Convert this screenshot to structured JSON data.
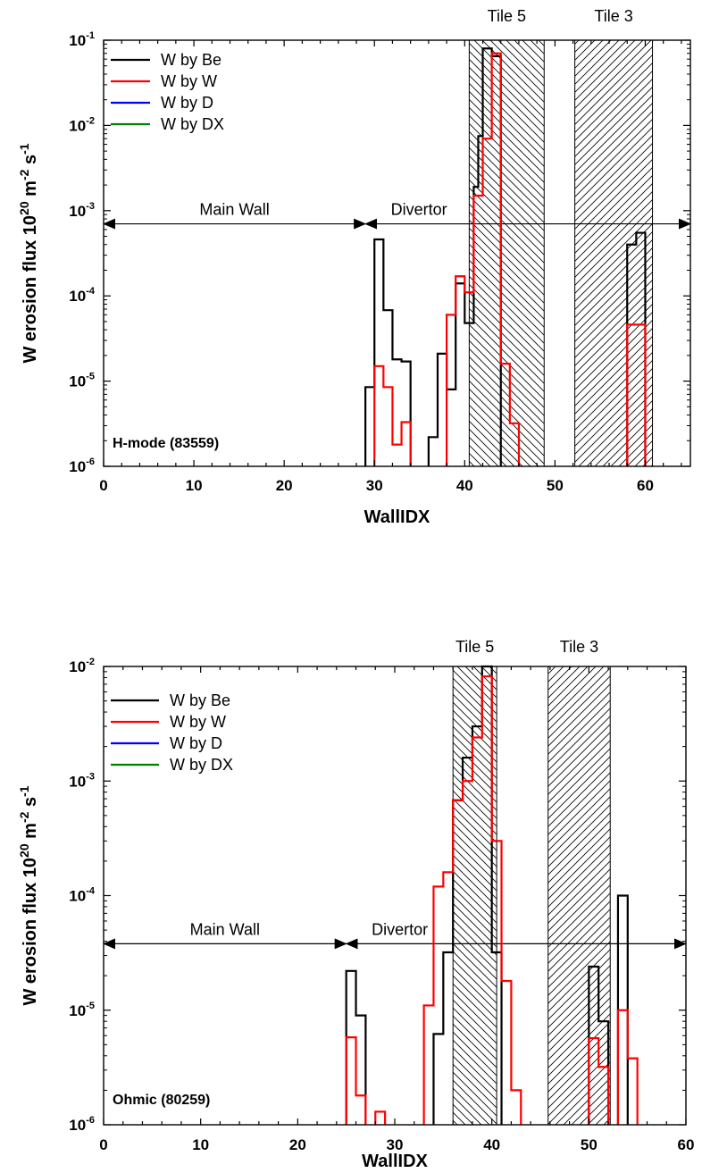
{
  "chart_data": [
    {
      "type": "line",
      "title": "",
      "xlabel": "WallIDX",
      "ylabel_main": "W erosion flux 10",
      "ylabel_sup1": "20",
      "ylabel_mid": " m",
      "ylabel_sup2": "-2",
      "ylabel_mid2": " s",
      "ylabel_sup3": "-1",
      "xlim": [
        0,
        65
      ],
      "ylim": [
        1e-06,
        0.1
      ],
      "yscale": "log",
      "xticks": [
        0,
        10,
        20,
        30,
        40,
        50,
        60
      ],
      "yticks": [
        -6,
        -5,
        -4,
        -3,
        -2,
        -1
      ],
      "legend_position": "top-left",
      "case_label": "H-mode (83559)",
      "regions": [
        {
          "label": "Tile 5",
          "x0": 40.5,
          "x1": 48.8,
          "hatch": "back"
        },
        {
          "label": "Tile 3",
          "x0": 52.2,
          "x1": 60.8,
          "hatch": "forward"
        }
      ],
      "arrows": [
        {
          "label": "Main Wall",
          "x0": 0,
          "x1": 29,
          "y": 0.0007
        },
        {
          "label": "Divertor",
          "x0": 29,
          "x1": 65,
          "y": 0.0007
        }
      ],
      "series": [
        {
          "name": "W by Be",
          "color": "#000000",
          "bins": [
            [
              29,
              30,
              8.5e-06
            ],
            [
              30,
              31,
              0.00046
            ],
            [
              31,
              32,
              6.8e-05
            ],
            [
              32,
              33,
              1.8e-05
            ],
            [
              33,
              34,
              1.7e-05
            ],
            [
              36,
              37,
              2.2e-06
            ],
            [
              37,
              38,
              2.1e-05
            ],
            [
              38,
              39,
              8e-06
            ],
            [
              39,
              40,
              0.00014
            ],
            [
              40,
              41,
              4.8e-05
            ],
            [
              41,
              41.5,
              0.0019
            ],
            [
              41.5,
              42,
              0.0075
            ],
            [
              42,
              43,
              0.08
            ],
            [
              43,
              44,
              0.065
            ],
            [
              58,
              59,
              0.0004
            ],
            [
              59,
              60,
              0.00055
            ]
          ]
        },
        {
          "name": "W by W",
          "color": "#ff0000",
          "bins": [
            [
              30,
              31,
              1.5e-05
            ],
            [
              31,
              32,
              8.5e-06
            ],
            [
              32,
              33,
              1.8e-06
            ],
            [
              33,
              34,
              3.3e-06
            ],
            [
              38,
              39,
              6e-05
            ],
            [
              39,
              40,
              0.00017
            ],
            [
              40,
              41,
              0.00011
            ],
            [
              41,
              42,
              0.0015
            ],
            [
              42,
              43,
              0.007
            ],
            [
              43,
              44,
              0.07
            ],
            [
              44,
              45,
              1.6e-05
            ],
            [
              45,
              46,
              3.2e-06
            ],
            [
              58,
              60,
              4.6e-05
            ]
          ]
        },
        {
          "name": "W by D",
          "color": "#0000ff",
          "bins": []
        },
        {
          "name": "W by DX",
          "color": "#008000",
          "bins": []
        }
      ]
    },
    {
      "type": "line",
      "title": "",
      "xlabel": "WallIDX",
      "ylabel_main": "W erosion flux 10",
      "ylabel_sup1": "20",
      "ylabel_mid": " m",
      "ylabel_sup2": "-2",
      "ylabel_mid2": " s",
      "ylabel_sup3": "-1",
      "xlim": [
        0,
        60
      ],
      "ylim": [
        1e-06,
        0.01
      ],
      "yscale": "log",
      "xticks": [
        0,
        10,
        20,
        30,
        40,
        50,
        60
      ],
      "yticks": [
        -6,
        -5,
        -4,
        -3,
        -2
      ],
      "legend_position": "top-left",
      "case_label": "Ohmic (80259)",
      "regions": [
        {
          "label": "Tile 5",
          "x0": 36,
          "x1": 40.5,
          "hatch": "back"
        },
        {
          "label": "Tile 3",
          "x0": 45.8,
          "x1": 52.2,
          "hatch": "forward"
        }
      ],
      "arrows": [
        {
          "label": "Main Wall",
          "x0": 0,
          "x1": 25,
          "y": 3.8e-05
        },
        {
          "label": "Divertor",
          "x0": 25,
          "x1": 60,
          "y": 3.8e-05
        }
      ],
      "series": [
        {
          "name": "W by Be",
          "color": "#000000",
          "bins": [
            [
              25,
              26,
              2.2e-05
            ],
            [
              26,
              27,
              9e-06
            ],
            [
              34,
              35,
              6.2e-06
            ],
            [
              35,
              36,
              3.2e-05
            ],
            [
              36,
              37,
              0.00068
            ],
            [
              37,
              38,
              0.0016
            ],
            [
              38,
              39,
              0.003
            ],
            [
              39,
              40,
              0.01
            ],
            [
              40,
              41,
              3.2e-05
            ],
            [
              50,
              51,
              2.4e-05
            ],
            [
              51,
              52,
              8e-06
            ],
            [
              53,
              54,
              0.0001
            ]
          ]
        },
        {
          "name": "W by W",
          "color": "#ff0000",
          "bins": [
            [
              25,
              26,
              5.8e-06
            ],
            [
              26,
              27,
              1.8e-06
            ],
            [
              28,
              29,
              1.3e-06
            ],
            [
              33,
              34,
              1.1e-05
            ],
            [
              34,
              35,
              0.00012
            ],
            [
              35,
              36,
              0.00016
            ],
            [
              36,
              37,
              0.00068
            ],
            [
              37,
              38,
              0.001
            ],
            [
              38,
              39,
              0.0024
            ],
            [
              39,
              40,
              0.0082
            ],
            [
              40,
              41,
              0.0003
            ],
            [
              41,
              42,
              1.8e-05
            ],
            [
              42,
              43,
              2e-06
            ],
            [
              50,
              51,
              5.7e-06
            ],
            [
              51,
              52,
              3.2e-06
            ],
            [
              53,
              54,
              1e-05
            ],
            [
              54,
              55,
              3.8e-06
            ]
          ]
        },
        {
          "name": "W by D",
          "color": "#0000ff",
          "bins": []
        },
        {
          "name": "W by DX",
          "color": "#008000",
          "bins": []
        }
      ]
    }
  ]
}
